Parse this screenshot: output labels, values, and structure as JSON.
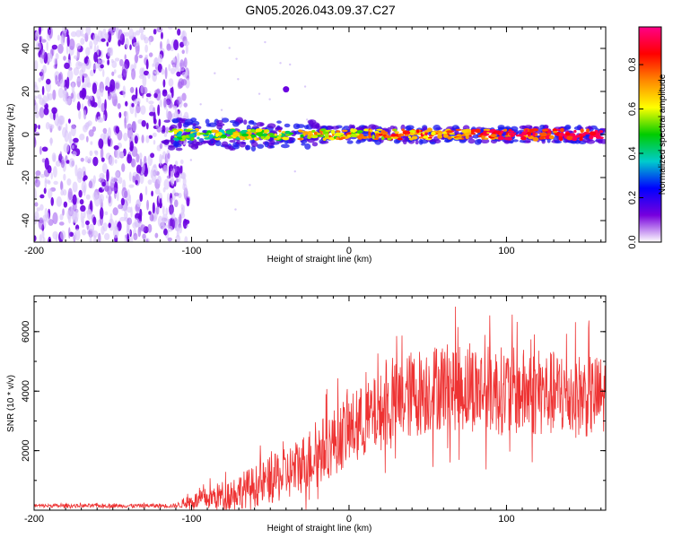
{
  "title": "GN05.2026.043.09.37.C27",
  "chart_data": [
    {
      "type": "heatmap",
      "name": "spectrogram",
      "xlabel": "Height of straight line (km)",
      "ylabel": "Frequency (Hz)",
      "xlim": [
        -200,
        163
      ],
      "ylim": [
        -50,
        50
      ],
      "xticks": [
        -200,
        -100,
        0,
        100
      ],
      "yticks": [
        -40,
        -20,
        0,
        20,
        40
      ],
      "colorbar": {
        "label": "Normalized spectral amplitude",
        "range": [
          0,
          0.97
        ],
        "ticks": [
          0.0,
          0.2,
          0.4,
          0.6,
          0.8
        ],
        "stops": [
          "#ffffff",
          "#7700dd",
          "#0000ff",
          "#00cccc",
          "#00cc00",
          "#ffff00",
          "#ff8800",
          "#ff0000",
          "#ff0088"
        ]
      },
      "features": {
        "noise_region_x": [
          -200,
          -105
        ],
        "signal_band_x": [
          -118,
          163
        ],
        "signal_band_center_hz": 0,
        "signal_band_halfwidth_hz": 6,
        "isolated_blob": {
          "x": -40,
          "y": 21
        }
      }
    },
    {
      "type": "line",
      "name": "snr",
      "xlabel": "Height of straight line (km)",
      "ylabel": "SNR (10 * v/v)",
      "xlim": [
        -200,
        163
      ],
      "ylim": [
        0,
        7200
      ],
      "xticks": [
        -200,
        -100,
        0,
        100
      ],
      "yticks": [
        2000,
        4000,
        6000
      ],
      "color": "#ee3333",
      "envelope": [
        {
          "x": -200,
          "base": 150,
          "amp": 60
        },
        {
          "x": -110,
          "base": 150,
          "amp": 70
        },
        {
          "x": -100,
          "base": 300,
          "amp": 250
        },
        {
          "x": -80,
          "base": 500,
          "amp": 500
        },
        {
          "x": -60,
          "base": 800,
          "amp": 700
        },
        {
          "x": -40,
          "base": 1200,
          "amp": 900
        },
        {
          "x": -20,
          "base": 1900,
          "amp": 1100
        },
        {
          "x": 0,
          "base": 2700,
          "amp": 1200
        },
        {
          "x": 20,
          "base": 3300,
          "amp": 1300
        },
        {
          "x": 40,
          "base": 3900,
          "amp": 1500
        },
        {
          "x": 60,
          "base": 4200,
          "amp": 1500
        },
        {
          "x": 100,
          "base": 4000,
          "amp": 1500
        },
        {
          "x": 163,
          "base": 3800,
          "amp": 1400
        }
      ]
    }
  ]
}
